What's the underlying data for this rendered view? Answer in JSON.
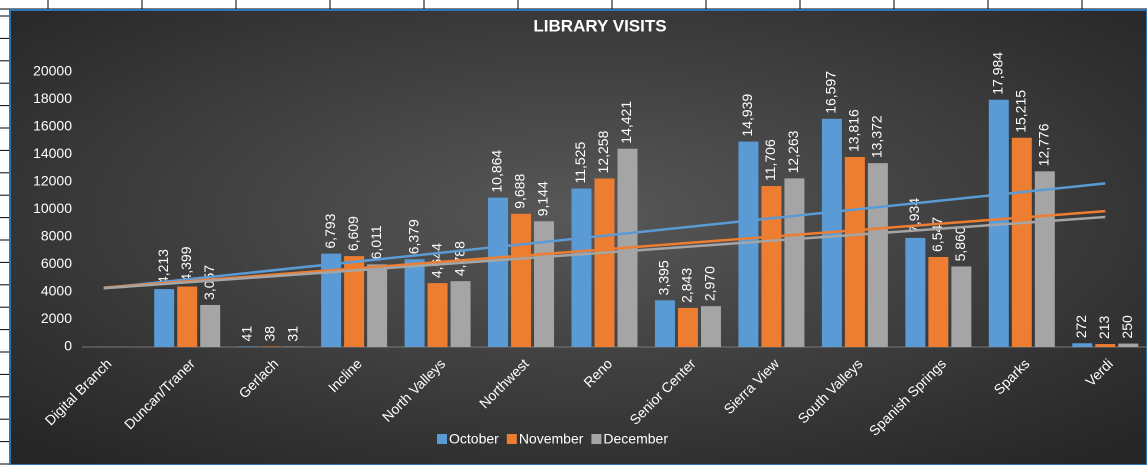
{
  "chart_data": {
    "type": "bar",
    "title": "LIBRARY VISITS",
    "categories": [
      "Digital Branch",
      "Duncan/Traner",
      "Gerlach",
      "Incline",
      "North Valleys",
      "Northwest",
      "Reno",
      "Senior Center",
      "Sierra View",
      "South Valleys",
      "Spanish Springs",
      "Sparks",
      "Verdi"
    ],
    "series": [
      {
        "name": "October",
        "color": "#5b9bd5",
        "values": [
          null,
          4213,
          41,
          6793,
          6379,
          10864,
          11525,
          3395,
          14939,
          16597,
          7934,
          17984,
          272
        ],
        "value_labels": [
          null,
          "4,213",
          "41",
          "6,793",
          "6,379",
          "10,864",
          "11,525",
          "3,395",
          "14,939",
          "16,597",
          "7,934",
          "17,984",
          "272"
        ]
      },
      {
        "name": "November",
        "color": "#ed7d31",
        "values": [
          null,
          4399,
          38,
          6609,
          4644,
          9688,
          12258,
          2843,
          11706,
          13816,
          6547,
          15215,
          213
        ],
        "value_labels": [
          null,
          "4,399",
          "38",
          "6,609",
          "4,644",
          "9,688",
          "12,258",
          "2,843",
          "11,706",
          "13,816",
          "6,547",
          "15,215",
          "213"
        ]
      },
      {
        "name": "December",
        "color": "#a5a5a5",
        "values": [
          null,
          3057,
          31,
          6011,
          4788,
          9144,
          14421,
          2970,
          12263,
          13372,
          5860,
          12776,
          250
        ],
        "value_labels": [
          null,
          "3,057",
          "31",
          "6,011",
          "4,788",
          "9,144",
          "14,421",
          "2,970",
          "12,263",
          "13,372",
          "5,860",
          "12,776",
          "250"
        ]
      }
    ],
    "ylim": [
      0,
      20000
    ],
    "yticks": [
      0,
      2000,
      4000,
      6000,
      8000,
      10000,
      12000,
      14000,
      16000,
      18000,
      20000
    ],
    "grid": false,
    "trendline": "linear",
    "legend": "bottom"
  }
}
